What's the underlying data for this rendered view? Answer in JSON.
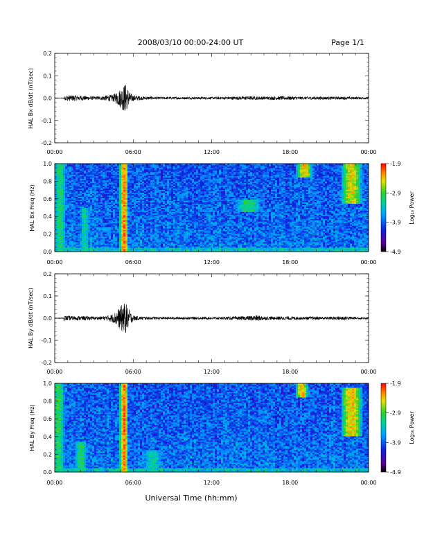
{
  "header": {
    "title": "2008/03/10  00:00-24:00 UT",
    "page_label": "Page 1/1"
  },
  "footer": {
    "xlabel": "Universal Time (hh:mm)"
  },
  "colors": {
    "trace": "#000000",
    "spectrogram_scale": [
      "#000000",
      "#5a0090",
      "#1020e0",
      "#00a0ff",
      "#00d0a0",
      "#30d030",
      "#e0e000",
      "#ff8000",
      "#ff0000"
    ]
  },
  "chart_data": [
    {
      "type": "line",
      "id": "bx-dbdt",
      "ylabel": "HAL Bx dB/dt (nT/sec)",
      "ylim": [
        -0.2,
        0.2
      ],
      "yticks": [
        "0.2",
        "0.1",
        "0.0",
        "-0.1",
        "-0.2"
      ],
      "xlim": [
        0,
        24
      ],
      "xticks": [
        "00:00",
        "06:00",
        "12:00",
        "18:00",
        "00:00"
      ],
      "series": [
        {
          "x": [
            0.7,
            0.9,
            1.5,
            2.0,
            2.5,
            3.0,
            3.5,
            4.0,
            4.5,
            5.0,
            5.2,
            5.4,
            5.6,
            5.8,
            6.0,
            6.3,
            6.6,
            8.0,
            10.0,
            12.0,
            14.0,
            14.6,
            15.5,
            16.2,
            17.5,
            18.3,
            19.0,
            20.0,
            21.0,
            22.0,
            23.0
          ],
          "amp": [
            0.004,
            0.012,
            0.012,
            0.01,
            0.008,
            0.006,
            0.007,
            0.012,
            0.015,
            0.04,
            0.055,
            0.065,
            0.045,
            0.02,
            0.012,
            0.01,
            0.007,
            0.004,
            0.004,
            0.004,
            0.006,
            0.007,
            0.006,
            0.006,
            0.007,
            0.006,
            0.005,
            0.006,
            0.005,
            0.005,
            0.004
          ]
        }
      ],
      "grid": false
    },
    {
      "type": "heatmap",
      "id": "bx-freq",
      "ylabel": "HAL Bx Freq (Hz)",
      "ylim": [
        0.0,
        1.0
      ],
      "yticks": [
        "1.0",
        "0.8",
        "0.6",
        "0.4",
        "0.2",
        "0.0"
      ],
      "xlim": [
        0,
        24
      ],
      "xticks": [
        "00:00",
        "06:00",
        "12:00",
        "18:00",
        "00:00"
      ],
      "colorbar": {
        "label": "Log₁₀ Power",
        "ticks": [
          "-1.9",
          "-2.9",
          "-3.9",
          "-4.9"
        ],
        "range": [
          -4.9,
          -1.9
        ]
      },
      "features": [
        {
          "t": 5.3,
          "width_h": 0.5,
          "fmax": 1.0,
          "level": -2.2
        },
        {
          "t": 0.4,
          "width_h": 0.8,
          "fmax": 1.0,
          "level": -3.1
        },
        {
          "t": 2.3,
          "width_h": 0.6,
          "fmax": 0.5,
          "level": -3.2
        },
        {
          "t": 19.1,
          "width_h": 0.9,
          "fmin": 0.85,
          "fmax": 1.0,
          "level": -2.4
        },
        {
          "t": 22.7,
          "width_h": 1.2,
          "fmin": 0.55,
          "fmax": 1.0,
          "level": -2.5
        },
        {
          "t": 14.8,
          "width_h": 1.8,
          "fmin": 0.45,
          "fmax": 0.6,
          "level": -3.1
        }
      ],
      "grid": false
    },
    {
      "type": "line",
      "id": "by-dbdt",
      "ylabel": "HAL By dB/dt (nT/sec)",
      "ylim": [
        -0.2,
        0.2
      ],
      "yticks": [
        "0.2",
        "0.1",
        "0.0",
        "-0.1",
        "-0.2"
      ],
      "xlim": [
        0,
        24
      ],
      "xticks": [
        "00:00",
        "06:00",
        "12:00",
        "18:00",
        "00:00"
      ],
      "series": [
        {
          "x": [
            0.7,
            0.9,
            1.5,
            2.0,
            2.5,
            3.0,
            3.5,
            4.0,
            4.5,
            5.0,
            5.2,
            5.4,
            5.6,
            5.8,
            6.0,
            6.3,
            6.6,
            8.0,
            10.0,
            12.0,
            14.0,
            14.6,
            15.5,
            16.2,
            17.5,
            18.3,
            19.0,
            20.0,
            21.0,
            22.0,
            23.0
          ],
          "amp": [
            0.01,
            0.01,
            0.008,
            0.008,
            0.008,
            0.006,
            0.006,
            0.01,
            0.02,
            0.05,
            0.065,
            0.07,
            0.05,
            0.025,
            0.012,
            0.008,
            0.006,
            0.004,
            0.004,
            0.004,
            0.006,
            0.008,
            0.012,
            0.006,
            0.007,
            0.006,
            0.005,
            0.006,
            0.005,
            0.008,
            0.004
          ]
        }
      ],
      "grid": false
    },
    {
      "type": "heatmap",
      "id": "by-freq",
      "ylabel": "HAL By Freq (Hz)",
      "ylim": [
        0.0,
        1.0
      ],
      "yticks": [
        "1.0",
        "0.8",
        "0.6",
        "0.4",
        "0.2",
        "0.0"
      ],
      "xlim": [
        0,
        24
      ],
      "xticks": [
        "00:00",
        "06:00",
        "12:00",
        "18:00",
        "00:00"
      ],
      "colorbar": {
        "label": "Log₁₀ Power",
        "ticks": [
          "-1.9",
          "-2.9",
          "-3.9",
          "-4.9"
        ],
        "range": [
          -4.9,
          -1.9
        ]
      },
      "features": [
        {
          "t": 5.3,
          "width_h": 0.5,
          "fmax": 1.0,
          "level": -2.2
        },
        {
          "t": 0.3,
          "width_h": 0.8,
          "fmax": 1.0,
          "level": -3.0
        },
        {
          "t": 2.0,
          "width_h": 0.9,
          "fmax": 0.35,
          "level": -3.1
        },
        {
          "t": 18.9,
          "width_h": 0.7,
          "fmin": 0.85,
          "fmax": 1.0,
          "level": -2.4
        },
        {
          "t": 22.7,
          "width_h": 1.2,
          "fmin": 0.4,
          "fmax": 0.95,
          "level": -2.4
        },
        {
          "t": 7.5,
          "width_h": 1.5,
          "fmax": 0.25,
          "level": -3.3
        }
      ],
      "grid": false
    }
  ]
}
